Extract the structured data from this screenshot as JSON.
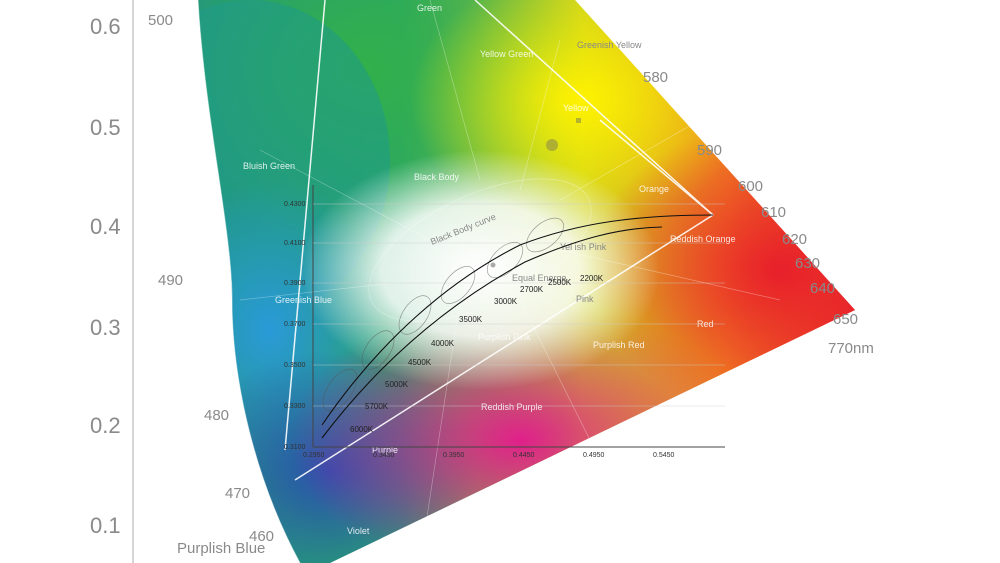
{
  "chart_data": {
    "type": "chromaticity-diagram",
    "title": "",
    "y_axis": {
      "ticks": [
        "0.6",
        "0.5",
        "0.4",
        "0.3",
        "0.2",
        "0.1"
      ]
    },
    "wavelength_labels": [
      "500",
      "580",
      "590",
      "600",
      "610",
      "620",
      "630",
      "640",
      "650",
      "770nm",
      "490",
      "480",
      "470",
      "460"
    ],
    "region_labels": [
      "Green",
      "Yellow Green",
      "Greenish Yellow",
      "Yellow",
      "Bluish Green",
      "Black Body",
      "Orange",
      "Reddish Orange",
      "Greenish Blue",
      "Red",
      "Purplish Pink",
      "Purplish Red",
      "Reddish Purple",
      "Purple",
      "Violet",
      "Equal Energe",
      "Yel ish Pink",
      "Pink",
      "Purplish Blue"
    ],
    "curve_label": "Black Body curve",
    "inset": {
      "x_ticks": [
        "0.2950",
        "0.3450",
        "0.3950",
        "0.4450",
        "0.4950",
        "0.5450"
      ],
      "y_ticks": [
        "0.4300",
        "0.4100",
        "0.3900",
        "0.3700",
        "0.3500",
        "0.3300",
        "0.3100"
      ]
    },
    "cct_points": [
      {
        "label": "2200K"
      },
      {
        "label": "2500K"
      },
      {
        "label": "2700K"
      },
      {
        "label": "3000K"
      },
      {
        "label": "3500K"
      },
      {
        "label": "4000K"
      },
      {
        "label": "4500K"
      },
      {
        "label": "5000K"
      },
      {
        "label": "5700K"
      },
      {
        "label": "6000K"
      }
    ],
    "colors": {
      "green": "#2e8b57",
      "yellow": "#ffe600",
      "red": "#e8202a",
      "blue": "#2e6fbf",
      "magenta": "#d81b8c",
      "cyan": "#20a0b0"
    }
  }
}
